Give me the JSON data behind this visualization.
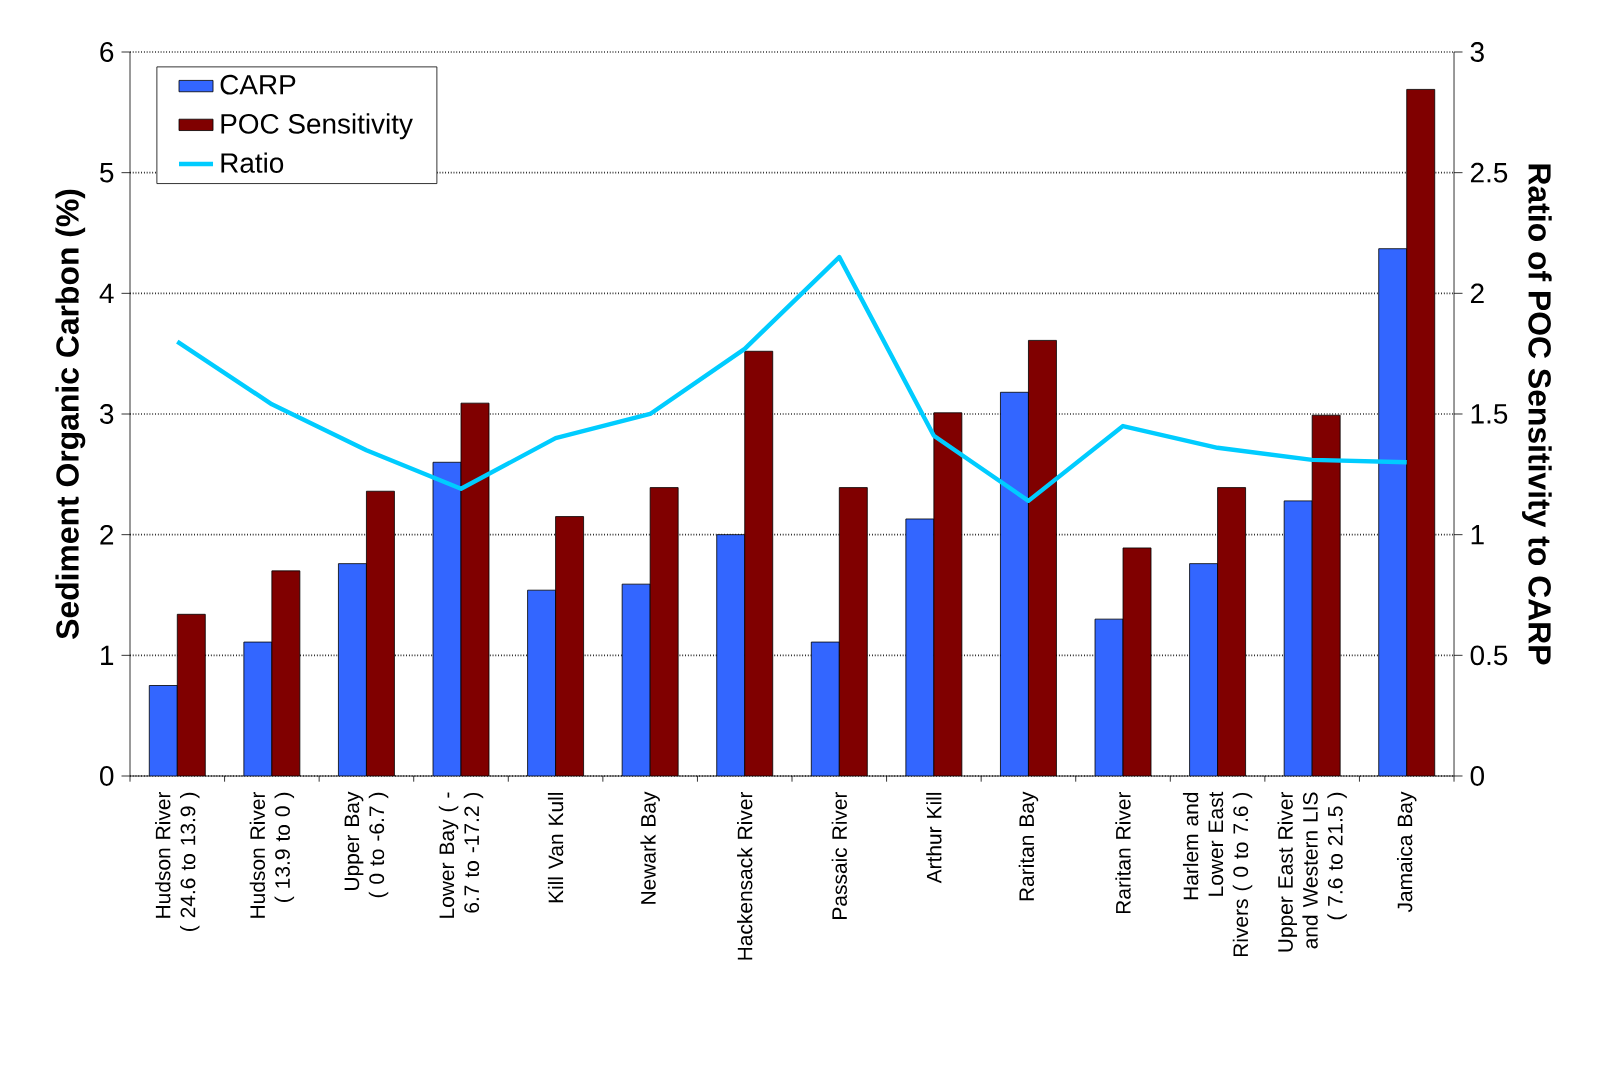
{
  "chart_data": {
    "type": "bar",
    "ylabel": "Sediment Organic Carbon (%)",
    "y2label": "Ratio of POC Sensitivity to CARP",
    "categories": [
      "Hudson River ( 24.6 to 13.9 )",
      "Hudson River ( 13.9 to 0 )",
      "Upper Bay ( 0 to -6.7 )",
      "Lower Bay ( -6.7 to -17.2 )",
      "Kill Van Kull",
      "Newark Bay",
      "Hackensack River",
      "Passaic River",
      "Arthur Kill",
      "Raritan Bay",
      "Raritan River",
      "Harlem and Lower East Rivers ( 0 to 7.6 )",
      "Upper East River and Western LIS ( 7.6 to 21.5 )",
      "Jamaica Bay"
    ],
    "series": [
      {
        "name": "CARP",
        "color": "#3366ff",
        "values": [
          0.75,
          1.11,
          1.76,
          2.6,
          1.54,
          1.59,
          2.0,
          1.11,
          2.13,
          3.18,
          1.3,
          1.76,
          2.28,
          4.37
        ]
      },
      {
        "name": "POC Sensitivity",
        "color": "#800000",
        "values": [
          1.34,
          1.7,
          2.36,
          3.09,
          2.15,
          2.39,
          3.52,
          2.39,
          3.01,
          3.61,
          1.89,
          2.39,
          2.99,
          5.69
        ]
      },
      {
        "name": "Ratio",
        "type": "line",
        "axis": "y2",
        "color": "#00ccff",
        "values": [
          1.8,
          1.54,
          1.35,
          1.19,
          1.4,
          1.5,
          1.77,
          2.15,
          1.41,
          1.14,
          1.45,
          1.36,
          1.31,
          1.3
        ]
      }
    ],
    "ylim": [
      0,
      6
    ],
    "yticks": [
      0,
      1,
      2,
      3,
      4,
      5,
      6
    ],
    "y2lim": [
      0,
      3
    ],
    "y2ticks": [
      0,
      0.5,
      1,
      1.5,
      2,
      2.5,
      3
    ],
    "grid": "y",
    "legend": "top left",
    "marker": "none"
  }
}
